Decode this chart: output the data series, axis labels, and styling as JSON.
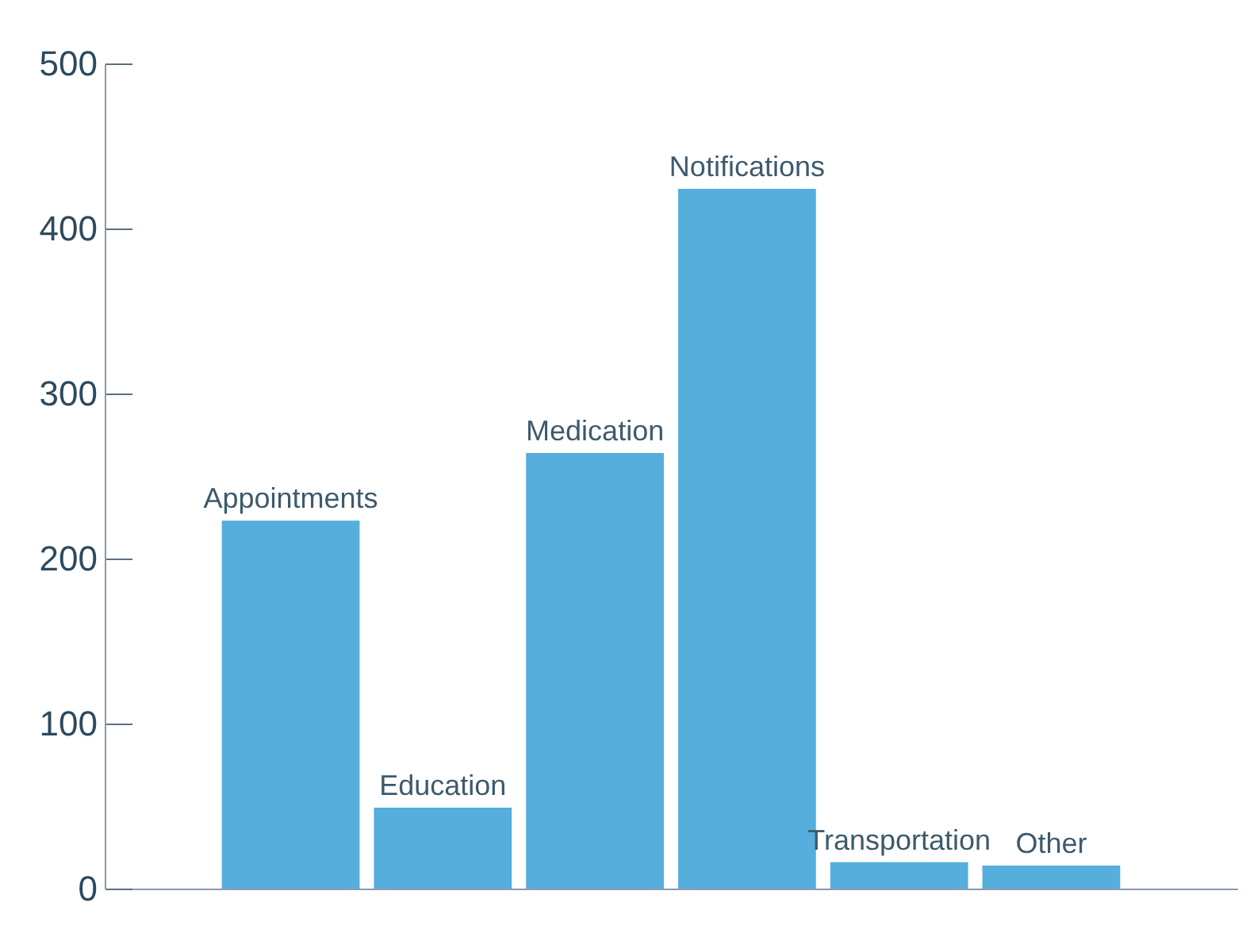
{
  "chart_data": {
    "type": "bar",
    "categories": [
      "Appointments",
      "Education",
      "Medication",
      "Notifications",
      "Transportation",
      "Other"
    ],
    "values": [
      223,
      49,
      264,
      424,
      16,
      14
    ],
    "color": "#55aedc",
    "ylim": [
      0,
      500
    ],
    "yticks": [
      0,
      100,
      200,
      300,
      400,
      500
    ],
    "grid": false
  }
}
